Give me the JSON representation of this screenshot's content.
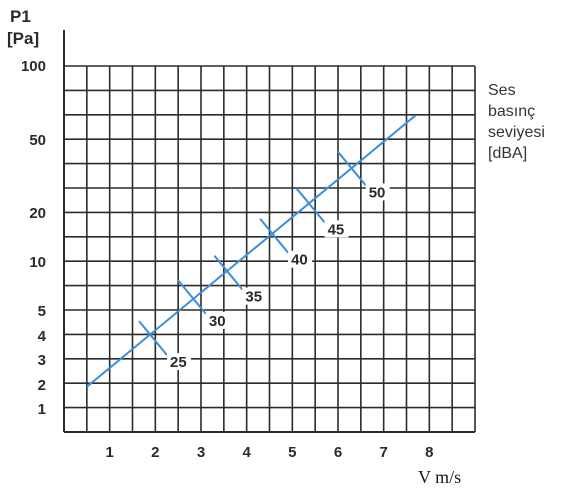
{
  "chart_data": {
    "type": "line",
    "ylabel": [
      "P1",
      "[Pa]"
    ],
    "xlabel": "V m/s",
    "legend_title": [
      "Ses",
      "basınç",
      "seviyesi",
      "[dBA]"
    ],
    "x_ticks": [
      1,
      2,
      3,
      4,
      5,
      6,
      7,
      8
    ],
    "y_ticks": [
      1,
      2,
      3,
      4,
      5,
      10,
      20,
      50,
      100
    ],
    "x_range": [
      0,
      9
    ],
    "line_color": "#3b8fd9",
    "grid": true,
    "series": [
      {
        "x": [
          0.5,
          7.7
        ],
        "y": [
          1.9,
          63
        ]
      }
    ],
    "markers": [
      {
        "label": "25",
        "x": 1.95,
        "y": 3.9
      },
      {
        "label": "30",
        "x": 2.8,
        "y": 6.1
      },
      {
        "label": "35",
        "x": 3.6,
        "y": 8.6
      },
      {
        "label": "40",
        "x": 4.6,
        "y": 14.5
      },
      {
        "label": "45",
        "x": 5.4,
        "y": 22
      },
      {
        "label": "50",
        "x": 6.3,
        "y": 35
      }
    ]
  }
}
